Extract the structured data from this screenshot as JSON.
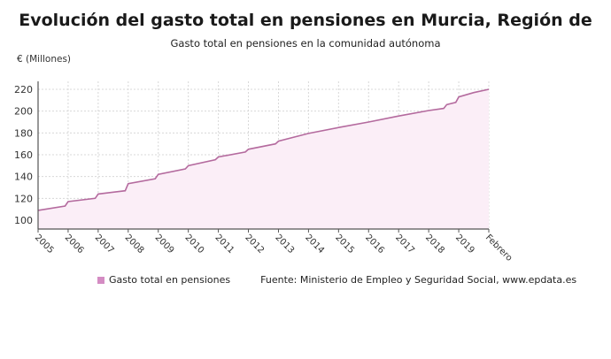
{
  "header": {
    "title": "Evolución del gasto total en pensiones en Murcia, Región de",
    "subtitle": "Gasto total en pensiones en la comunidad autónoma",
    "y_unit": "€ (Millones)"
  },
  "legend": {
    "series_label": "Gasto total en pensiones",
    "source": "Fuente: Ministerio de Empleo y Seguridad Social, www.epdata.es",
    "color": "#d48cc3"
  },
  "colors": {
    "line": "#b46a9e",
    "fill": "#fbeef7",
    "grid": "#d8d8d8",
    "axis": "#555555"
  },
  "chart_data": {
    "type": "area",
    "title": "Evolución del gasto total en pensiones en Murcia, Región de",
    "subtitle": "Gasto total en pensiones en la comunidad autónoma",
    "xlabel": "",
    "ylabel": "€ (Millones)",
    "ylim": [
      92,
      228
    ],
    "yticks": [
      100,
      120,
      140,
      160,
      180,
      200,
      220
    ],
    "categories": [
      "2005",
      "2006",
      "2007",
      "2008",
      "2009",
      "2010",
      "2011",
      "2012",
      "2013",
      "2014",
      "2015",
      "2016",
      "2017",
      "2018",
      "2019",
      "Febrero"
    ],
    "grid": true,
    "legend_position": "bottom",
    "series": [
      {
        "name": "Gasto total en pensiones",
        "x": [
          0,
          0.9,
          1.0,
          1.9,
          2.0,
          2.9,
          3.0,
          3.9,
          4.0,
          4.9,
          5.0,
          5.9,
          6.0,
          6.9,
          7.0,
          7.9,
          8.0,
          9.0,
          10.0,
          11.0,
          12.0,
          13.0,
          13.5,
          13.6,
          13.9,
          14.0,
          14.5,
          15.0
        ],
        "values": [
          109,
          113,
          117,
          120,
          124,
          127,
          133.5,
          138,
          142,
          147,
          150,
          155.5,
          158,
          162.5,
          165,
          170,
          172.5,
          179.5,
          185,
          190,
          195.5,
          200.5,
          202.5,
          206,
          208,
          213,
          217,
          220
        ]
      }
    ]
  }
}
